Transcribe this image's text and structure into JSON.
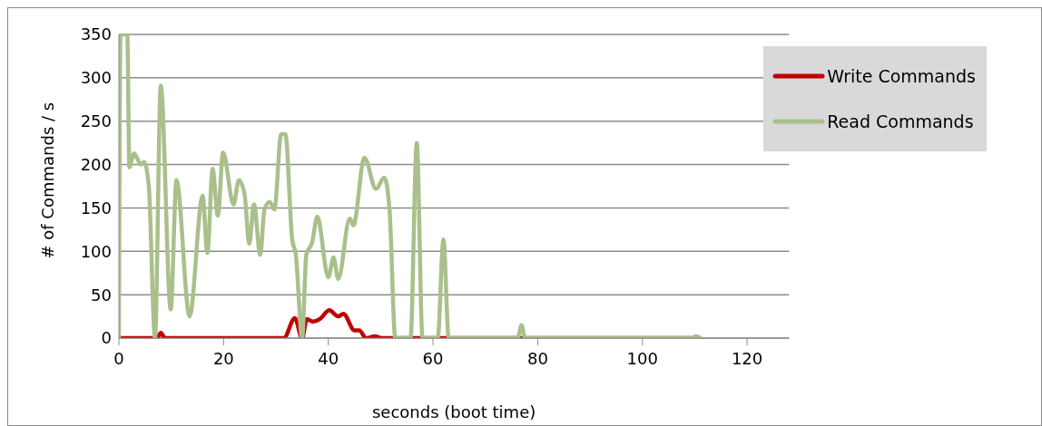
{
  "chart_data": {
    "type": "line",
    "xlabel": "seconds (boot time)",
    "ylabel": "# of Commands / s",
    "xlim": [
      0,
      128
    ],
    "xticks": [
      0,
      20,
      40,
      60,
      80,
      100,
      120
    ],
    "ylim": [
      0,
      350
    ],
    "yticks": [
      0,
      50,
      100,
      150,
      200,
      250,
      300,
      350
    ],
    "grid": "y",
    "legend": "top right",
    "marker": "none",
    "line_style": "solid",
    "series": [
      {
        "name": "Write Commands",
        "color": "#c00000",
        "x": [
          0,
          7.3,
          8,
          8.8,
          31.5,
          33.6,
          35,
          35.9,
          37,
          38.4,
          40.2,
          41.9,
          42.9,
          45,
          45.9,
          47.2,
          48.9,
          50.2,
          111
        ],
        "values": [
          0,
          0,
          6,
          0,
          0,
          23,
          0,
          22,
          19,
          22,
          32,
          25,
          28,
          9,
          9,
          0,
          2,
          0,
          0
        ]
      },
      {
        "name": "Read Commands",
        "color": "#a9c08c",
        "x": [
          0,
          0.3,
          1.6,
          2,
          2.9,
          4.2,
          4.8,
          5.7,
          6.9,
          8,
          9.9,
          11,
          13.5,
          16,
          16.9,
          17.9,
          18.9,
          19.9,
          21.9,
          22.9,
          24,
          24.9,
          25.8,
          27,
          27.8,
          28.8,
          29.7,
          31,
          31.8,
          33.1,
          33.8,
          35,
          35.8,
          36.9,
          37.9,
          40,
          41,
          41.9,
          44.1,
          44.8,
          46.9,
          49.1,
          50.7,
          51.7,
          52.8,
          55.7,
          56.9,
          58,
          60.9,
          62,
          63,
          76.2,
          76.9,
          77.6,
          109.5,
          110.2,
          111
        ],
        "values": [
          0,
          350,
          350,
          197,
          213,
          200,
          203,
          176,
          0,
          291,
          33,
          182,
          25,
          164,
          98,
          195,
          141,
          214,
          154,
          182,
          166,
          109,
          154,
          96,
          148,
          157,
          148,
          235,
          235,
          114,
          96,
          0,
          96,
          110,
          140,
          70,
          93,
          68,
          138,
          130,
          208,
          172,
          185,
          148,
          0,
          0,
          225,
          0,
          0,
          114,
          0,
          0,
          15,
          0,
          0,
          2,
          0
        ]
      }
    ]
  }
}
